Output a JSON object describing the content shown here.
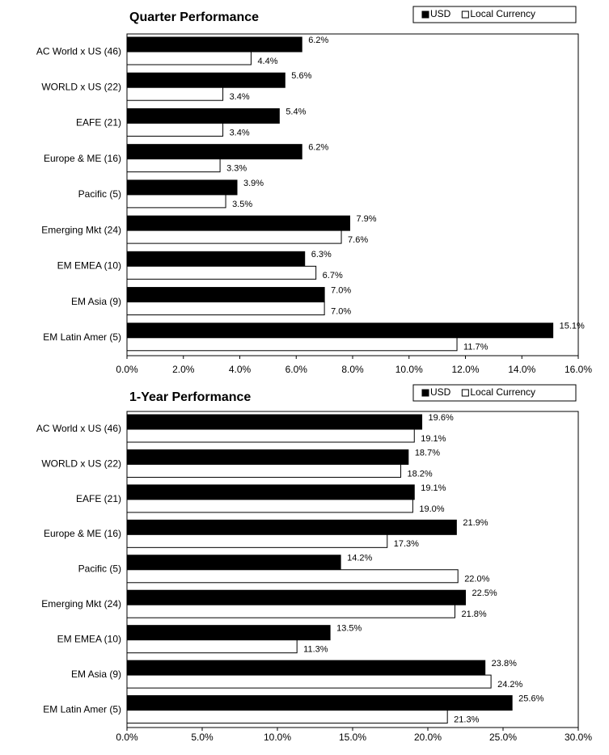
{
  "chart_data": [
    {
      "type": "bar",
      "orientation": "horizontal",
      "title": "Quarter Performance",
      "categories": [
        "AC World x US (46)",
        "WORLD x US (22)",
        "EAFE (21)",
        "Europe & ME (16)",
        "Pacific (5)",
        "Emerging Mkt (24)",
        "EM EMEA (10)",
        "EM Asia (9)",
        "EM Latin Amer (5)"
      ],
      "series": [
        {
          "name": "USD",
          "color": "#000000",
          "values": [
            6.2,
            5.6,
            5.4,
            6.2,
            3.9,
            7.9,
            6.3,
            7.0,
            15.1
          ],
          "value_labels": [
            "6.2%",
            "5.6%",
            "5.4%",
            "6.2%",
            "3.9%",
            "7.9%",
            "6.3%",
            "7.0%",
            "15.1%"
          ]
        },
        {
          "name": "Local Currency",
          "color": "#ffffff",
          "values": [
            4.4,
            3.4,
            3.4,
            3.3,
            3.5,
            7.6,
            6.7,
            7.0,
            11.7
          ],
          "value_labels": [
            "4.4%",
            "3.4%",
            "3.4%",
            "3.3%",
            "3.5%",
            "7.6%",
            "6.7%",
            "7.0%",
            "11.7%"
          ]
        }
      ],
      "xlim": [
        0,
        16
      ],
      "xticks": [
        {
          "value": 0,
          "label": "0.0%"
        },
        {
          "value": 2,
          "label": "2.0%"
        },
        {
          "value": 4,
          "label": "4.0%"
        },
        {
          "value": 6,
          "label": "6.0%"
        },
        {
          "value": 8,
          "label": "8.0%"
        },
        {
          "value": 10,
          "label": "10.0%"
        },
        {
          "value": 12,
          "label": "12.0%"
        },
        {
          "value": 14,
          "label": "14.0%"
        },
        {
          "value": 16,
          "label": "16.0%"
        }
      ],
      "legend": "top-right"
    },
    {
      "type": "bar",
      "orientation": "horizontal",
      "title": "1-Year Performance",
      "categories": [
        "AC World x US (46)",
        "WORLD x US (22)",
        "EAFE (21)",
        "Europe & ME (16)",
        "Pacific (5)",
        "Emerging Mkt (24)",
        "EM EMEA (10)",
        "EM Asia (9)",
        "EM Latin Amer (5)"
      ],
      "series": [
        {
          "name": "USD",
          "color": "#000000",
          "values": [
            19.6,
            18.7,
            19.1,
            21.9,
            14.2,
            22.5,
            13.5,
            23.8,
            25.6
          ],
          "value_labels": [
            "19.6%",
            "18.7%",
            "19.1%",
            "21.9%",
            "14.2%",
            "22.5%",
            "13.5%",
            "23.8%",
            "25.6%"
          ]
        },
        {
          "name": "Local Currency",
          "color": "#ffffff",
          "values": [
            19.1,
            18.2,
            19.0,
            17.3,
            22.0,
            21.8,
            11.3,
            24.2,
            21.3
          ],
          "value_labels": [
            "19.1%",
            "18.2%",
            "19.0%",
            "17.3%",
            "22.0%",
            "21.8%",
            "11.3%",
            "24.2%",
            "21.3%"
          ]
        }
      ],
      "xlim": [
        0,
        30
      ],
      "xticks": [
        {
          "value": 0,
          "label": "0.0%"
        },
        {
          "value": 5,
          "label": "5.0%"
        },
        {
          "value": 10,
          "label": "10.0%"
        },
        {
          "value": 15,
          "label": "15.0%"
        },
        {
          "value": 20,
          "label": "20.0%"
        },
        {
          "value": 25,
          "label": "25.0%"
        },
        {
          "value": 30,
          "label": "30.0%"
        }
      ],
      "legend": "top-right"
    }
  ]
}
